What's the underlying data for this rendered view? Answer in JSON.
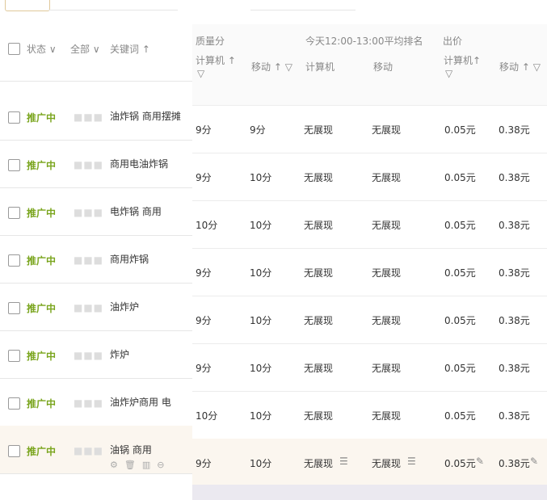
{
  "header": {
    "status": "状态",
    "all": "全部",
    "keyword": "关键词",
    "quality": "质量分",
    "rank": "今天12:00-13:00平均排名",
    "bid": "出价",
    "pc": "计算机",
    "mobile": "移动",
    "sort_up": "↑",
    "filter": "▽",
    "dropdown": "∨"
  },
  "colors": {
    "status": "#7aa51e",
    "highlight": "#fbf6ef"
  },
  "rows": [
    {
      "status": "推广中",
      "keyword": "油炸锅 商用摆摊",
      "q_pc": "9分",
      "q_mobile": "9分",
      "r_pc": "无展现",
      "r_mobile": "无展现",
      "b_pc": "0.05元",
      "b_mobile": "0.38元"
    },
    {
      "status": "推广中",
      "keyword": "商用电油炸锅",
      "q_pc": "9分",
      "q_mobile": "10分",
      "r_pc": "无展现",
      "r_mobile": "无展现",
      "b_pc": "0.05元",
      "b_mobile": "0.38元"
    },
    {
      "status": "推广中",
      "keyword": "电炸锅 商用",
      "q_pc": "10分",
      "q_mobile": "10分",
      "r_pc": "无展现",
      "r_mobile": "无展现",
      "b_pc": "0.05元",
      "b_mobile": "0.38元"
    },
    {
      "status": "推广中",
      "keyword": "商用炸锅",
      "q_pc": "9分",
      "q_mobile": "10分",
      "r_pc": "无展现",
      "r_mobile": "无展现",
      "b_pc": "0.05元",
      "b_mobile": "0.38元"
    },
    {
      "status": "推广中",
      "keyword": "油炸炉",
      "q_pc": "9分",
      "q_mobile": "10分",
      "r_pc": "无展现",
      "r_mobile": "无展现",
      "b_pc": "0.05元",
      "b_mobile": "0.38元"
    },
    {
      "status": "推广中",
      "keyword": "炸炉",
      "q_pc": "9分",
      "q_mobile": "10分",
      "r_pc": "无展现",
      "r_mobile": "无展现",
      "b_pc": "0.05元",
      "b_mobile": "0.38元"
    },
    {
      "status": "推广中",
      "keyword": "油炸炉商用 电",
      "q_pc": "10分",
      "q_mobile": "10分",
      "r_pc": "无展现",
      "r_mobile": "无展现",
      "b_pc": "0.05元",
      "b_mobile": "0.38元"
    },
    {
      "status": "推广中",
      "keyword": "油锅 商用",
      "q_pc": "9分",
      "q_mobile": "10分",
      "r_pc": "无展现",
      "r_mobile": "无展现",
      "b_pc": "0.05元",
      "b_mobile": "0.38元"
    }
  ],
  "icons": [
    "settings-icon",
    "delete-icon",
    "chart-icon",
    "more-icon",
    "detail-list-icon",
    "edit-icon"
  ]
}
